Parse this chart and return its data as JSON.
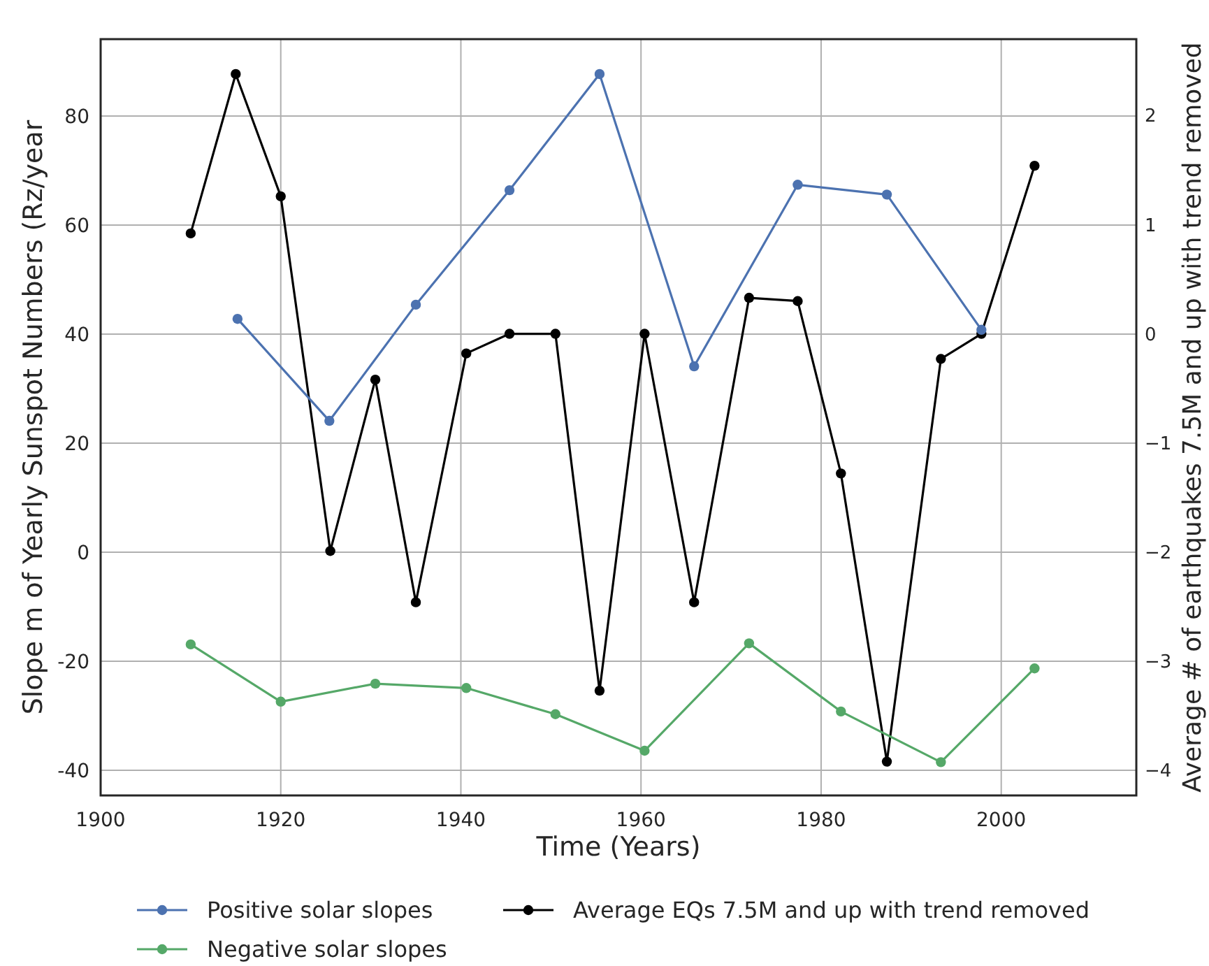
{
  "chart_data": {
    "type": "line",
    "xlabel": "Time (Years)",
    "ylabel": "Slope m of Yearly Sunspot Numbers (Rz/year",
    "y2label": "Average # of earthquakes 7.5M and up with trend removed",
    "xlim": [
      1900,
      2015
    ],
    "xticks": [
      1900,
      1920,
      1940,
      1960,
      1980,
      2000
    ],
    "ylim": [
      -44.6,
      94.1
    ],
    "yticks": [
      -40,
      -20,
      0,
      20,
      40,
      60,
      80
    ],
    "y2lim": [
      -4.23,
      2.7
    ],
    "y2ticks": [
      {
        "value": -4,
        "label": "−4"
      },
      {
        "value": -3,
        "label": "−3"
      },
      {
        "value": -2,
        "label": "−2"
      },
      {
        "value": -1,
        "label": "−1"
      },
      0,
      1,
      2
    ],
    "grid": true,
    "legend": "bottom",
    "marker": "circle",
    "line_style": "solid",
    "series": [
      {
        "name": "Positive solar slopes",
        "color": "#4c72b0",
        "x": [
          1915.2,
          1925.4,
          1935.0,
          1945.4,
          1955.4,
          1965.9,
          1977.4,
          1987.3,
          1997.8
        ],
        "values": [
          42.8,
          24.1,
          45.4,
          66.4,
          87.7,
          34.1,
          67.4,
          65.6,
          40.8
        ]
      },
      {
        "name": "Negative solar slopes",
        "color": "#55a868",
        "x": [
          1910.0,
          1920.0,
          1930.5,
          1940.6,
          1950.5,
          1960.4,
          1972.0,
          1982.2,
          1993.3,
          2003.7
        ],
        "values": [
          -16.9,
          -27.4,
          -24.1,
          -24.9,
          -29.7,
          -36.4,
          -16.7,
          -29.2,
          -38.5,
          -21.3
        ]
      },
      {
        "name": "Average EQs 7.5M and up with trend removed",
        "color": "#000000",
        "axis": "y2",
        "x": [
          1910.0,
          1915.0,
          1920.0,
          1925.5,
          1930.5,
          1935.0,
          1940.6,
          1945.4,
          1950.5,
          1955.4,
          1960.4,
          1965.9,
          1972.0,
          1977.4,
          1982.2,
          1987.3,
          1993.3,
          1997.8,
          2003.7
        ],
        "values": [
          0.92,
          2.38,
          1.26,
          -1.99,
          -0.42,
          -2.46,
          -0.18,
          0,
          0,
          -3.27,
          0,
          -2.46,
          0.33,
          0.3,
          -1.28,
          -3.92,
          -0.23,
          0,
          1.54
        ]
      }
    ]
  }
}
